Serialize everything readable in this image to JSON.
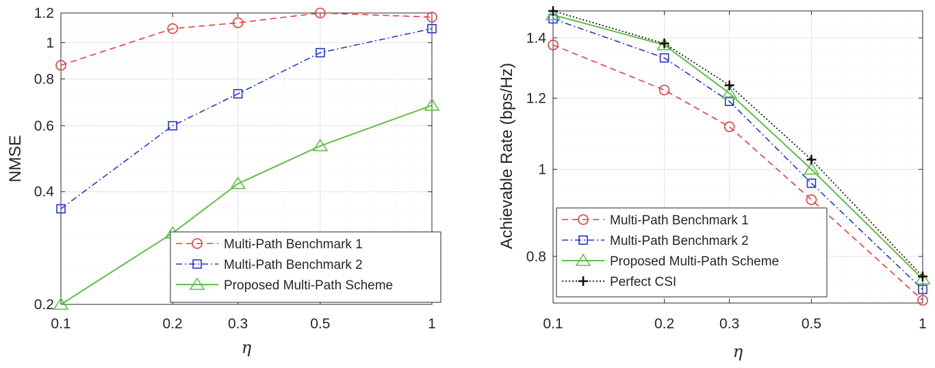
{
  "colors": {
    "series": [
      "#e8383d",
      "#2133d6",
      "#5cbf45",
      "#111111"
    ],
    "grid": "#e4e4e4",
    "axis": "#262626"
  },
  "chart_data": [
    {
      "type": "line",
      "title": "",
      "xlabel": "η",
      "ylabel": "NMSE",
      "xscale": "log",
      "yscale": "log",
      "xlim": [
        0.1,
        1
      ],
      "ylim": [
        0.2,
        1.2
      ],
      "xticks": [
        0.1,
        0.2,
        0.3,
        0.5,
        1
      ],
      "xtick_labels": [
        "0.1",
        "0.2",
        "0.3",
        "0.5",
        "1"
      ],
      "yticks": [
        0.2,
        0.4,
        0.6,
        0.8,
        1,
        1.2
      ],
      "ytick_labels": [
        "0.2",
        "0.4",
        "0.6",
        "0.8",
        "1",
        "1.2"
      ],
      "grid": true,
      "legend_position": "bottom-right",
      "x": [
        0.1,
        0.2,
        0.3,
        0.5,
        1
      ],
      "series": [
        {
          "name": "Multi-Path Benchmark 1",
          "values": [
            0.87,
            1.09,
            1.13,
            1.2,
            1.17
          ]
        },
        {
          "name": "Multi-Path Benchmark 2",
          "values": [
            0.36,
            0.6,
            0.73,
            0.94,
            1.09
          ]
        },
        {
          "name": "Proposed Multi-Path Scheme",
          "values": [
            0.2,
            0.31,
            0.42,
            0.53,
            0.68
          ]
        }
      ]
    },
    {
      "type": "line",
      "title": "",
      "xlabel": "η",
      "ylabel": "Achievable Rate (bps/Hz)",
      "xscale": "log",
      "yscale": "log",
      "xlim": [
        0.1,
        1
      ],
      "ylim": [
        0.71,
        1.5
      ],
      "xticks": [
        0.1,
        0.2,
        0.3,
        0.5,
        1
      ],
      "xtick_labels": [
        "0.1",
        "0.2",
        "0.3",
        "0.5",
        "1"
      ],
      "yticks": [
        0.8,
        1,
        1.2,
        1.4
      ],
      "ytick_labels": [
        "0.8",
        "1",
        "1.2",
        "1.4"
      ],
      "grid": true,
      "legend_position": "bottom-left",
      "x": [
        0.1,
        0.2,
        0.3,
        0.5,
        1
      ],
      "series": [
        {
          "name": "Multi-Path Benchmark 1",
          "values": [
            1.375,
            1.225,
            1.115,
            0.925,
            0.715
          ]
        },
        {
          "name": "Multi-Path Benchmark 2",
          "values": [
            1.47,
            1.33,
            1.19,
            0.965,
            0.735
          ]
        },
        {
          "name": "Proposed Multi-Path Scheme",
          "values": [
            1.485,
            1.375,
            1.215,
            1.0,
            0.755
          ]
        },
        {
          "name": "Perfect CSI",
          "values": [
            1.5,
            1.38,
            1.24,
            1.025,
            0.76
          ]
        }
      ]
    }
  ]
}
